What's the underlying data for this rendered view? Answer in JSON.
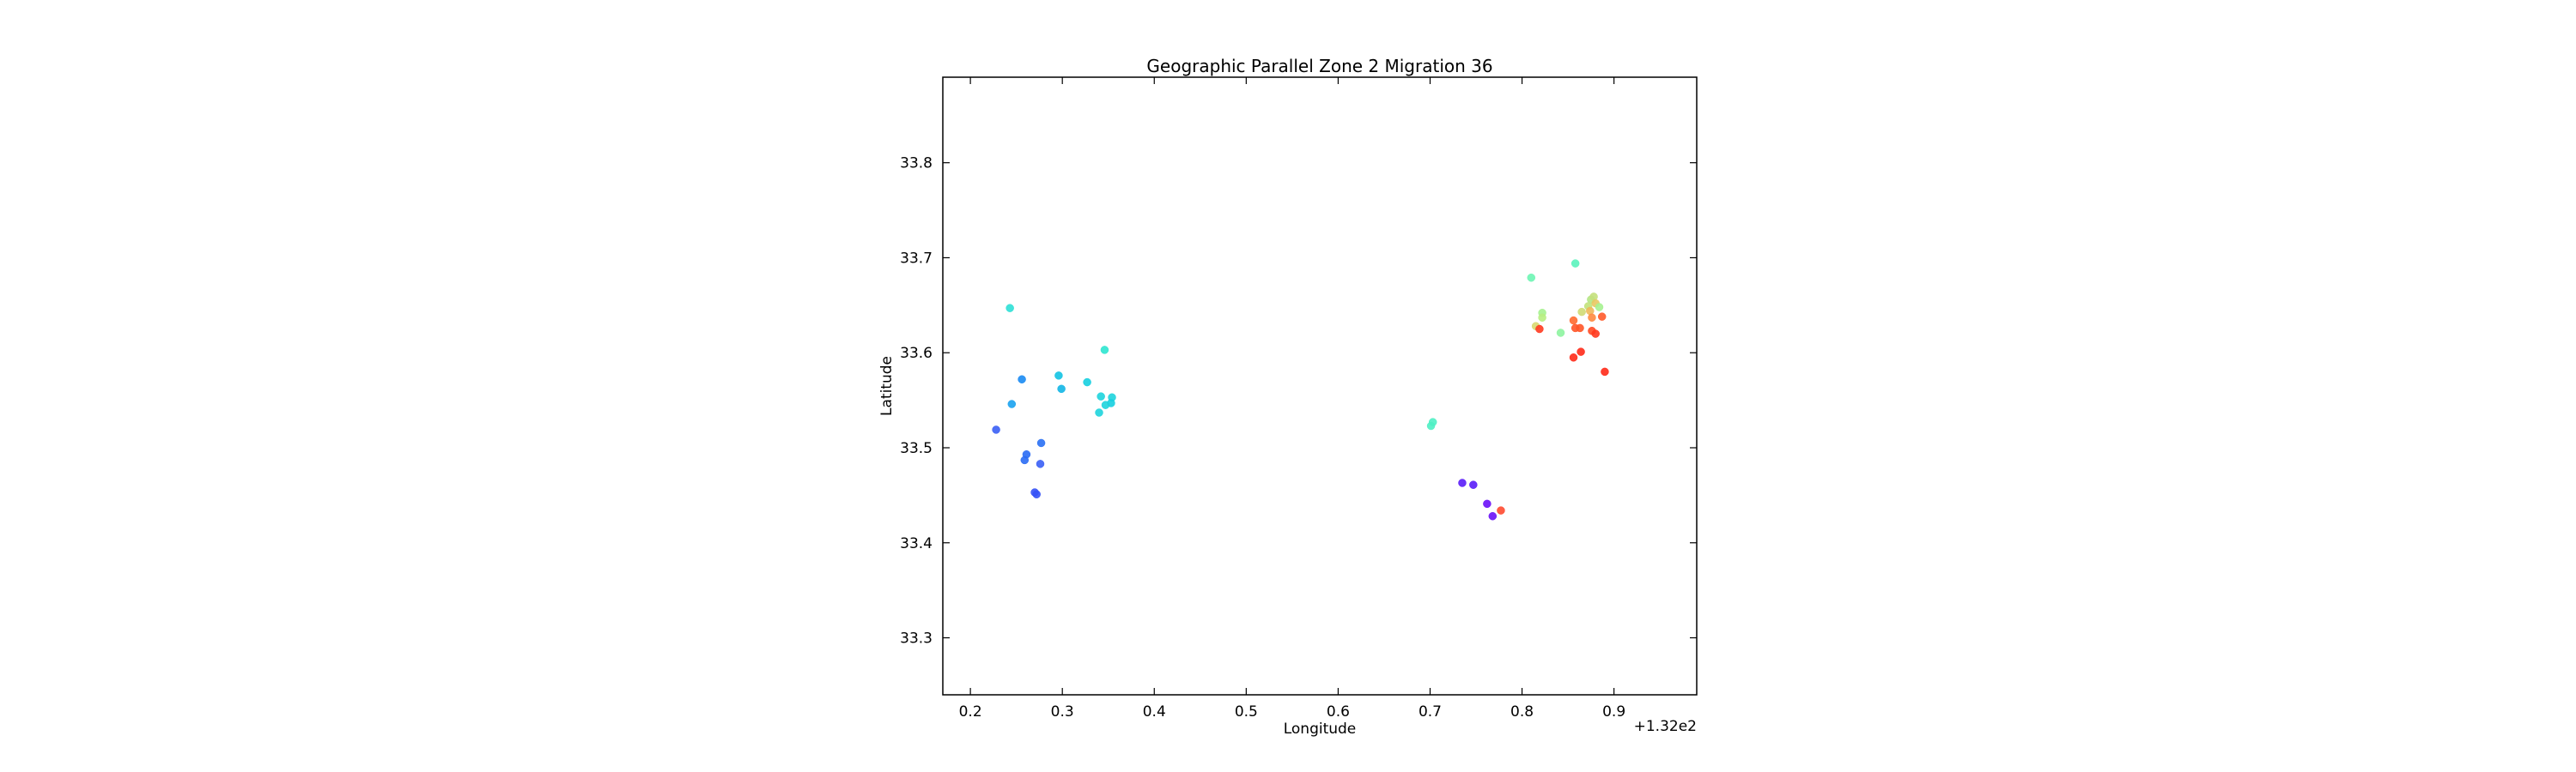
{
  "chart_data": {
    "type": "scatter",
    "title": "Geographic Parallel Zone 2 Migration 36",
    "xlabel": "Longitude",
    "ylabel": "Latitude",
    "x_offset_label": "+1.32e2",
    "xlim": [
      132.17,
      132.99
    ],
    "ylim": [
      33.24,
      33.89
    ],
    "xticks": [
      132.2,
      132.3,
      132.4,
      132.5,
      132.6,
      132.7,
      132.8,
      132.9
    ],
    "xtick_labels": [
      "0.2",
      "0.3",
      "0.4",
      "0.5",
      "0.6",
      "0.7",
      "0.8",
      "0.9"
    ],
    "yticks": [
      33.3,
      33.4,
      33.5,
      33.6,
      33.7,
      33.8
    ],
    "ytick_labels": [
      "33.3",
      "33.4",
      "33.5",
      "33.6",
      "33.7",
      "33.8"
    ],
    "grid": false,
    "legend": "none",
    "colormap": "rainbow",
    "points": [
      {
        "x": 132.243,
        "y": 33.647,
        "c": "#2de0d6"
      },
      {
        "x": 132.256,
        "y": 33.572,
        "c": "#1a8bf3"
      },
      {
        "x": 132.245,
        "y": 33.546,
        "c": "#1aa2ef"
      },
      {
        "x": 132.228,
        "y": 33.519,
        "c": "#3a5ff5"
      },
      {
        "x": 132.277,
        "y": 33.505,
        "c": "#2a70f4"
      },
      {
        "x": 132.261,
        "y": 33.493,
        "c": "#2a6cf4"
      },
      {
        "x": 132.259,
        "y": 33.487,
        "c": "#2a6cf4"
      },
      {
        "x": 132.276,
        "y": 33.483,
        "c": "#3a5ff5"
      },
      {
        "x": 132.27,
        "y": 33.453,
        "c": "#3552f6"
      },
      {
        "x": 132.272,
        "y": 33.451,
        "c": "#3552f6"
      },
      {
        "x": 132.296,
        "y": 33.576,
        "c": "#12c3e3"
      },
      {
        "x": 132.299,
        "y": 33.562,
        "c": "#12b6e6"
      },
      {
        "x": 132.327,
        "y": 33.569,
        "c": "#16cfe0"
      },
      {
        "x": 132.346,
        "y": 33.603,
        "c": "#2ee6d0"
      },
      {
        "x": 132.342,
        "y": 33.554,
        "c": "#1ed4dd"
      },
      {
        "x": 132.354,
        "y": 33.553,
        "c": "#1ed4dd"
      },
      {
        "x": 132.353,
        "y": 33.547,
        "c": "#16cfe0"
      },
      {
        "x": 132.347,
        "y": 33.545,
        "c": "#1ed4dd"
      },
      {
        "x": 132.34,
        "y": 33.537,
        "c": "#1ed4dd"
      },
      {
        "x": 132.703,
        "y": 33.527,
        "c": "#4ff0c4"
      },
      {
        "x": 132.701,
        "y": 33.523,
        "c": "#4ff0c4"
      },
      {
        "x": 132.735,
        "y": 33.463,
        "c": "#5a1cf8"
      },
      {
        "x": 132.747,
        "y": 33.461,
        "c": "#5a1cf8"
      },
      {
        "x": 132.762,
        "y": 33.441,
        "c": "#6a10f8"
      },
      {
        "x": 132.777,
        "y": 33.434,
        "c": "#ff4a30"
      },
      {
        "x": 132.768,
        "y": 33.428,
        "c": "#6a10f8"
      },
      {
        "x": 132.81,
        "y": 33.679,
        "c": "#6ef5b4"
      },
      {
        "x": 132.858,
        "y": 33.694,
        "c": "#5af3bc"
      },
      {
        "x": 132.822,
        "y": 33.642,
        "c": "#a6f290"
      },
      {
        "x": 132.822,
        "y": 33.637,
        "c": "#b8ee82"
      },
      {
        "x": 132.815,
        "y": 33.628,
        "c": "#d8d870"
      },
      {
        "x": 132.819,
        "y": 33.625,
        "c": "#ff3a20"
      },
      {
        "x": 132.842,
        "y": 33.621,
        "c": "#8ef4a0"
      },
      {
        "x": 132.856,
        "y": 33.634,
        "c": "#ff6a30"
      },
      {
        "x": 132.858,
        "y": 33.626,
        "c": "#ff5528"
      },
      {
        "x": 132.863,
        "y": 33.626,
        "c": "#ff5528"
      },
      {
        "x": 132.865,
        "y": 33.643,
        "c": "#d0da74"
      },
      {
        "x": 132.872,
        "y": 33.649,
        "c": "#c2e27a"
      },
      {
        "x": 132.875,
        "y": 33.656,
        "c": "#b4e684"
      },
      {
        "x": 132.878,
        "y": 33.659,
        "c": "#c4e07c"
      },
      {
        "x": 132.88,
        "y": 33.652,
        "c": "#e8c862"
      },
      {
        "x": 132.884,
        "y": 33.648,
        "c": "#a6f290"
      },
      {
        "x": 132.874,
        "y": 33.644,
        "c": "#f0b85a"
      },
      {
        "x": 132.876,
        "y": 33.637,
        "c": "#ff8a40"
      },
      {
        "x": 132.887,
        "y": 33.638,
        "c": "#ff5a2a"
      },
      {
        "x": 132.876,
        "y": 33.623,
        "c": "#ff4a24"
      },
      {
        "x": 132.88,
        "y": 33.62,
        "c": "#ff3a1e"
      },
      {
        "x": 132.864,
        "y": 33.601,
        "c": "#ff2a18"
      },
      {
        "x": 132.856,
        "y": 33.595,
        "c": "#ff2a18"
      },
      {
        "x": 132.89,
        "y": 33.58,
        "c": "#ff2a18"
      }
    ]
  }
}
